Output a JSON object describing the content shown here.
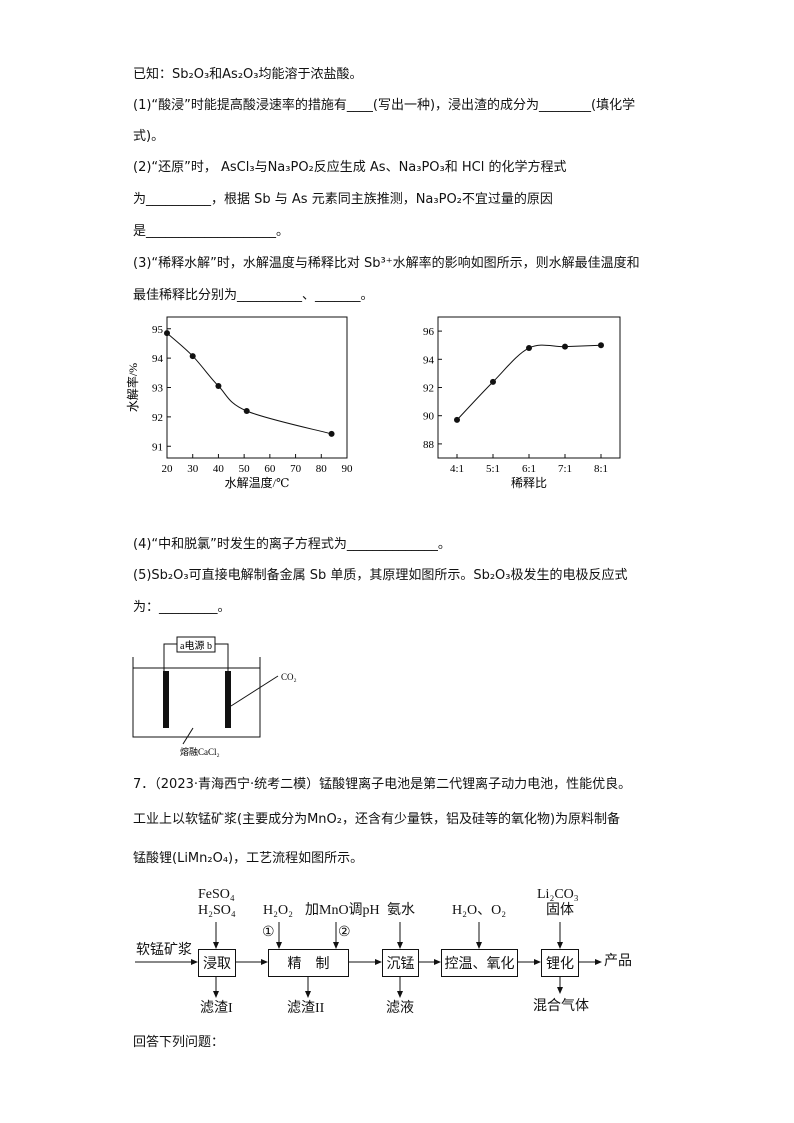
{
  "text": {
    "l1": "已知：Sb₂O₃和As₂O₃均能溶于浓盐酸。",
    "l2": "(1)“酸浸”时能提高酸浸速率的措施有____(写出一种)，浸出渣的成分为________(填化学",
    "l3": "式)。",
    "l4": "(2)“还原”时， AsCl₃与Na₃PO₂反应生成 As、Na₃PO₃和 HCl 的化学方程式",
    "l5": "为__________，根据 Sb 与 As 元素同主族推测，Na₃PO₂不宜过量的原因",
    "l6": "是____________________。",
    "l7": "(3)“稀释水解”时，水解温度与稀释比对 Sb³⁺水解率的影响如图所示，则水解最佳温度和",
    "l8": "最佳稀释比分别为__________、_______。",
    "l9": "(4)“中和脱氯”时发生的离子方程式为______________。",
    "l10": "(5)Sb₂O₃可直接电解制备金属 Sb 单质，其原理如图所示。Sb₂O₃极发生的电极反应式",
    "l11": "为：_________。",
    "q7a": "7．（2023·青海西宁·统考二模）锰酸锂离子电池是第二代锂离子动力电池，性能优良。",
    "q7b": "工业上以软锰矿浆(主要成分为MnO₂，还含有少量铁，铝及硅等的氧化物)为原料制备",
    "q7c": "锰酸锂(LiMn₂O₄)，工艺流程如图所示。",
    "answer": "回答下列问题："
  },
  "cell": {
    "power": "a电源 b",
    "gas": "CO₂",
    "electrolyte": "熔融CaCl₂"
  },
  "flow": {
    "feed": "软锰矿浆",
    "steps": [
      "浸取",
      "精　制",
      "沉锰",
      "控温、氧化",
      "锂化"
    ],
    "inputs": [
      "FeSO₄",
      "H₂SO₄",
      "H₂O₂",
      "加MnO调pH",
      "氨水",
      "H₂O、O₂",
      "Li₂CO₃",
      "固体"
    ],
    "marks": [
      "①",
      "②"
    ],
    "outputs": [
      "滤渣I",
      "滤渣II",
      "滤液",
      "混合气体"
    ],
    "product": "产品"
  },
  "chart_data": [
    {
      "type": "line",
      "xlabel": "水解温度/℃",
      "ylabel": "水解率/%",
      "xlim": [
        20,
        90
      ],
      "ylim": [
        90.6,
        95.4
      ],
      "xticks": [
        "20",
        "30",
        "40",
        "50",
        "60",
        "70",
        "80",
        "90"
      ],
      "yticks": [
        "91",
        "92",
        "93",
        "94",
        "95"
      ],
      "x": [
        20,
        30,
        40,
        51,
        84
      ],
      "y": [
        94.85,
        94.07,
        93.05,
        92.2,
        91.42
      ]
    },
    {
      "type": "line",
      "xlabel": "稀释比",
      "ylabel": "水解率/%",
      "categories": [
        "4:1",
        "5:1",
        "6:1",
        "7:1",
        "8:1"
      ],
      "ylim": [
        87,
        97
      ],
      "yticks": [
        "88",
        "90",
        "92",
        "94",
        "96"
      ],
      "y": [
        89.7,
        92.4,
        94.8,
        94.9,
        95.0
      ]
    }
  ]
}
